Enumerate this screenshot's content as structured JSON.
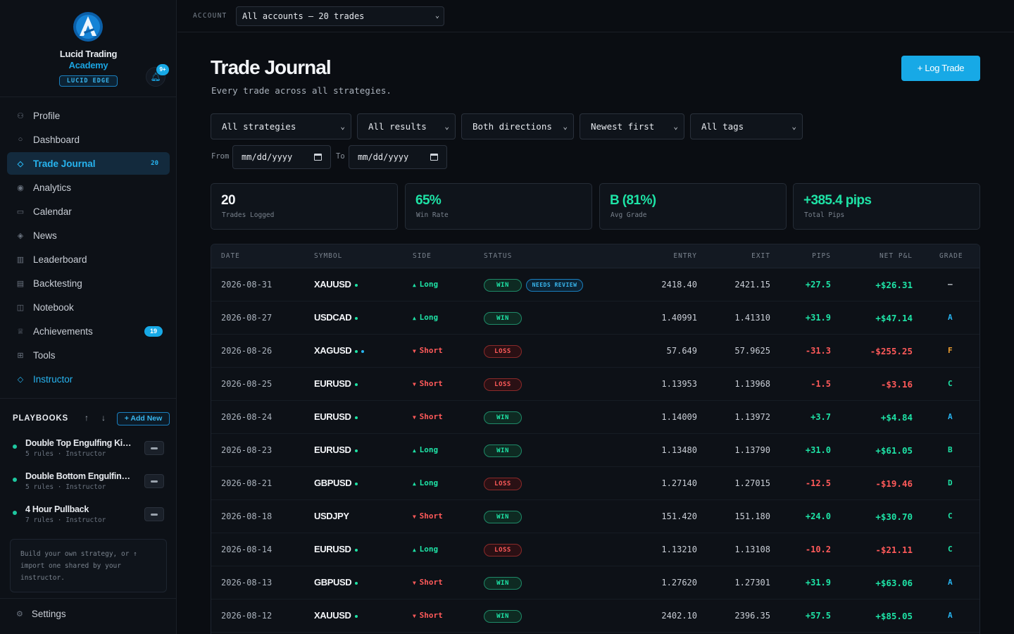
{
  "brand": {
    "name": "Lucid Trading",
    "sub": "Academy",
    "badge": "LUCID EDGE",
    "notifications": "9+"
  },
  "nav": [
    {
      "label": "Profile",
      "icon": "person-icon"
    },
    {
      "label": "Dashboard",
      "icon": "circle-icon"
    },
    {
      "label": "Trade Journal",
      "icon": "diamond-icon",
      "count": "20",
      "active": true
    },
    {
      "label": "Analytics",
      "icon": "target-icon"
    },
    {
      "label": "Calendar",
      "icon": "calendar-icon"
    },
    {
      "label": "News",
      "icon": "news-icon"
    },
    {
      "label": "Leaderboard",
      "icon": "bars-icon"
    },
    {
      "label": "Backtesting",
      "icon": "chart-icon"
    },
    {
      "label": "Notebook",
      "icon": "book-icon"
    },
    {
      "label": "Achievements",
      "icon": "trophy-icon",
      "pill": "19"
    },
    {
      "label": "Tools",
      "icon": "grid-icon"
    },
    {
      "label": "Instructor",
      "icon": "diamond-icon"
    }
  ],
  "playbooks": {
    "title": "PLAYBOOKS",
    "add_label": "+ Add New",
    "items": [
      {
        "name": "Double Top Engulfing Kicker",
        "meta": "5 rules · Instructor"
      },
      {
        "name": "Double Bottom Engulfing Kicker",
        "meta": "5 rules · Instructor"
      },
      {
        "name": "4 Hour Pullback",
        "meta": "7 rules · Instructor"
      }
    ],
    "help": "Build your own strategy, or ↑ import one shared by your instructor."
  },
  "settings_label": "Settings",
  "topbar": {
    "account_label": "ACCOUNT",
    "account_value": "All accounts — 20 trades"
  },
  "page": {
    "title": "Trade Journal",
    "subtitle": "Every trade across all strategies.",
    "log_label": "+ Log Trade"
  },
  "filters": {
    "strategy": "All strategies",
    "result": "All results",
    "direction": "Both directions",
    "sort": "Newest first",
    "tags": "All tags",
    "from_label": "From",
    "to_label": "To",
    "date_placeholder": "mm/dd/yyyy"
  },
  "stats": [
    {
      "value": "20",
      "label": "Trades Logged"
    },
    {
      "value": "65%",
      "label": "Win Rate"
    },
    {
      "value": "B (81%)",
      "label": "Avg Grade"
    },
    {
      "value": "+385.4 pips",
      "label": "Total Pips"
    }
  ],
  "table": {
    "headers": [
      "DATE",
      "SYMBOL",
      "SIDE",
      "STATUS",
      "ENTRY",
      "EXIT",
      "PIPS",
      "NET P&L",
      "GRADE"
    ],
    "rows": [
      {
        "date": "2026-08-31",
        "symbol": "XAUUSD",
        "dots": [
          "#1ee3a6"
        ],
        "side": "Long",
        "status": "WIN",
        "review": "NEEDS REVIEW",
        "entry": "2418.40",
        "exit": "2421.15",
        "pips": "+27.5",
        "pnl": "+$26.31",
        "grade": "—"
      },
      {
        "date": "2026-08-27",
        "symbol": "USDCAD",
        "dots": [
          "#1ee3a6"
        ],
        "side": "Long",
        "status": "WIN",
        "entry": "1.40991",
        "exit": "1.41310",
        "pips": "+31.9",
        "pnl": "+$47.14",
        "grade": "A"
      },
      {
        "date": "2026-08-26",
        "symbol": "XAGUSD",
        "dots": [
          "#1ee3a6",
          "#27b4f0"
        ],
        "side": "Short",
        "status": "LOSS",
        "entry": "57.649",
        "exit": "57.9625",
        "pips": "-31.3",
        "pnl": "-$255.25",
        "grade": "F"
      },
      {
        "date": "2026-08-25",
        "symbol": "EURUSD",
        "dots": [
          "#1ee3a6"
        ],
        "side": "Short",
        "status": "LOSS",
        "entry": "1.13953",
        "exit": "1.13968",
        "pips": "-1.5",
        "pnl": "-$3.16",
        "grade": "C"
      },
      {
        "date": "2026-08-24",
        "symbol": "EURUSD",
        "dots": [
          "#1ee3a6"
        ],
        "side": "Short",
        "status": "WIN",
        "entry": "1.14009",
        "exit": "1.13972",
        "pips": "+3.7",
        "pnl": "+$4.84",
        "grade": "A"
      },
      {
        "date": "2026-08-23",
        "symbol": "EURUSD",
        "dots": [
          "#1ee3a6"
        ],
        "side": "Long",
        "status": "WIN",
        "entry": "1.13480",
        "exit": "1.13790",
        "pips": "+31.0",
        "pnl": "+$61.05",
        "grade": "B"
      },
      {
        "date": "2026-08-21",
        "symbol": "GBPUSD",
        "dots": [
          "#1ee3a6"
        ],
        "side": "Long",
        "status": "LOSS",
        "entry": "1.27140",
        "exit": "1.27015",
        "pips": "-12.5",
        "pnl": "-$19.46",
        "grade": "D"
      },
      {
        "date": "2026-08-18",
        "symbol": "USDJPY",
        "dots": [],
        "side": "Short",
        "status": "WIN",
        "entry": "151.420",
        "exit": "151.180",
        "pips": "+24.0",
        "pnl": "+$30.70",
        "grade": "C"
      },
      {
        "date": "2026-08-14",
        "symbol": "EURUSD",
        "dots": [
          "#1ee3a6"
        ],
        "side": "Long",
        "status": "LOSS",
        "entry": "1.13210",
        "exit": "1.13108",
        "pips": "-10.2",
        "pnl": "-$21.11",
        "grade": "C"
      },
      {
        "date": "2026-08-13",
        "symbol": "GBPUSD",
        "dots": [
          "#1ee3a6"
        ],
        "side": "Short",
        "status": "WIN",
        "entry": "1.27620",
        "exit": "1.27301",
        "pips": "+31.9",
        "pnl": "+$63.06",
        "grade": "A"
      },
      {
        "date": "2026-08-12",
        "symbol": "XAUUSD",
        "dots": [
          "#1ee3a6"
        ],
        "side": "Short",
        "status": "WIN",
        "entry": "2402.10",
        "exit": "2396.35",
        "pips": "+57.5",
        "pnl": "+$85.05",
        "grade": "A"
      }
    ]
  },
  "colors": {
    "accent": "#17a9e6",
    "positive": "#1ee3a6",
    "negative": "#ff5a5a",
    "grade": {
      "A": "#27b4f0",
      "B": "#1ee3a6",
      "C": "#1ee3a6",
      "D": "#1ee3a6",
      "F": "#f0a030",
      "—": "#c9ced6"
    }
  }
}
